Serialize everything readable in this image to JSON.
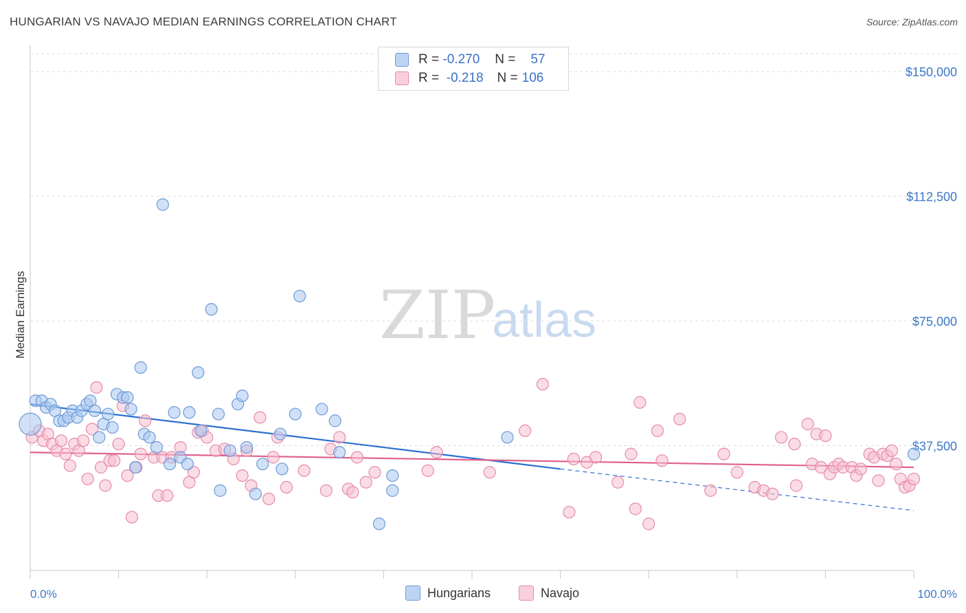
{
  "title": "HUNGARIAN VS NAVAJO MEDIAN EARNINGS CORRELATION CHART",
  "source": "Source: ZipAtlas.com",
  "watermark": {
    "zip": "ZIP",
    "atlas": "atlas"
  },
  "legend": {
    "rows": [
      {
        "r_label": "R =",
        "r_value": "-0.270",
        "n_label": "N =",
        "n_value": "57"
      },
      {
        "r_label": "R =",
        "r_value": "-0.218",
        "n_label": "N =",
        "n_value": "106"
      }
    ]
  },
  "colors": {
    "blue_fill": "#a9c8f0",
    "blue_stroke": "#6d9ad6",
    "blue_line": "#2a6fd0",
    "pink_fill": "#f6c0d0",
    "pink_stroke": "#e68aa8",
    "pink_line": "#e0608c",
    "tick_text": "#3b78c8",
    "grid": "#dddddd"
  },
  "chart_data": {
    "type": "scatter",
    "xlabel": "",
    "ylabel": "Median Earnings",
    "xlim": [
      0,
      100
    ],
    "ylim": [
      0,
      155000
    ],
    "x_tick_labels": [
      "0.0%",
      "100.0%"
    ],
    "y_ticks": [
      {
        "value": 37500,
        "label": "$37,500"
      },
      {
        "value": 75000,
        "label": "$75,000"
      },
      {
        "value": 112500,
        "label": "$112,500"
      },
      {
        "value": 150000,
        "label": "$150,000"
      }
    ],
    "grid": true,
    "legend_position": "bottom",
    "series": [
      {
        "name": "Hungarians",
        "color": "#a9c8f0",
        "points": [
          [
            0.0,
            44000
          ],
          [
            0.6,
            51000
          ],
          [
            1.3,
            51000
          ],
          [
            1.8,
            49000
          ],
          [
            2.3,
            50000
          ],
          [
            2.8,
            48000
          ],
          [
            3.3,
            45000
          ],
          [
            3.8,
            45000
          ],
          [
            4.3,
            46000
          ],
          [
            4.8,
            48000
          ],
          [
            5.3,
            46000
          ],
          [
            5.8,
            48000
          ],
          [
            6.4,
            50000
          ],
          [
            6.8,
            51000
          ],
          [
            7.3,
            48000
          ],
          [
            7.8,
            40000
          ],
          [
            8.3,
            44000
          ],
          [
            8.8,
            47000
          ],
          [
            9.3,
            43000
          ],
          [
            9.8,
            53000
          ],
          [
            10.5,
            52000
          ],
          [
            11.0,
            52000
          ],
          [
            11.4,
            48500
          ],
          [
            11.9,
            31000
          ],
          [
            12.5,
            61000
          ],
          [
            12.9,
            41000
          ],
          [
            13.5,
            40000
          ],
          [
            14.3,
            37000
          ],
          [
            15.0,
            110000
          ],
          [
            15.8,
            32000
          ],
          [
            16.3,
            47500
          ],
          [
            17.0,
            34000
          ],
          [
            17.8,
            32000
          ],
          [
            18.0,
            47500
          ],
          [
            19.0,
            59500
          ],
          [
            19.3,
            42000
          ],
          [
            20.5,
            78500
          ],
          [
            21.3,
            47000
          ],
          [
            21.5,
            24000
          ],
          [
            22.6,
            36000
          ],
          [
            23.5,
            50000
          ],
          [
            24.0,
            52500
          ],
          [
            24.5,
            37000
          ],
          [
            25.5,
            23000
          ],
          [
            26.3,
            32000
          ],
          [
            28.3,
            41000
          ],
          [
            28.5,
            30500
          ],
          [
            30.0,
            47000
          ],
          [
            30.5,
            82500
          ],
          [
            33.0,
            48500
          ],
          [
            34.5,
            45000
          ],
          [
            35.0,
            35500
          ],
          [
            39.5,
            14000
          ],
          [
            41.0,
            28500
          ],
          [
            41.0,
            24000
          ],
          [
            54.0,
            40000
          ],
          [
            100.0,
            35000
          ]
        ],
        "trend": {
          "x0": 0,
          "y0": 50000,
          "x1": 60,
          "y1": 30500,
          "dash_x1": 100,
          "dash_y1": 18000
        }
      },
      {
        "name": "Navajo",
        "color": "#f6c0d0",
        "points": [
          [
            0.2,
            40000
          ],
          [
            1.0,
            42000
          ],
          [
            1.5,
            39000
          ],
          [
            2.0,
            41000
          ],
          [
            2.5,
            38000
          ],
          [
            3.0,
            36000
          ],
          [
            3.5,
            39000
          ],
          [
            4.0,
            35000
          ],
          [
            4.5,
            31500
          ],
          [
            5.0,
            38000
          ],
          [
            5.5,
            36000
          ],
          [
            6.0,
            39000
          ],
          [
            6.5,
            27500
          ],
          [
            7.0,
            42500
          ],
          [
            7.5,
            55000
          ],
          [
            8.0,
            31000
          ],
          [
            8.5,
            25500
          ],
          [
            9.0,
            33000
          ],
          [
            9.5,
            33000
          ],
          [
            10.0,
            38000
          ],
          [
            10.5,
            49500
          ],
          [
            11.0,
            28500
          ],
          [
            11.5,
            16000
          ],
          [
            12.0,
            31000
          ],
          [
            12.5,
            35000
          ],
          [
            13.0,
            45000
          ],
          [
            14.0,
            34000
          ],
          [
            14.5,
            22500
          ],
          [
            15.0,
            34000
          ],
          [
            15.5,
            22500
          ],
          [
            16.0,
            34000
          ],
          [
            17.0,
            37000
          ],
          [
            18.0,
            26500
          ],
          [
            18.5,
            29500
          ],
          [
            19.0,
            41500
          ],
          [
            19.5,
            42000
          ],
          [
            20.0,
            40000
          ],
          [
            21.0,
            36000
          ],
          [
            22.0,
            36500
          ],
          [
            23.0,
            33500
          ],
          [
            24.0,
            28500
          ],
          [
            24.5,
            36000
          ],
          [
            25.0,
            25500
          ],
          [
            26.0,
            46000
          ],
          [
            27.0,
            21500
          ],
          [
            27.5,
            34000
          ],
          [
            28.0,
            40000
          ],
          [
            29.0,
            25000
          ],
          [
            31.0,
            30000
          ],
          [
            33.5,
            24000
          ],
          [
            34.0,
            36500
          ],
          [
            35.0,
            40000
          ],
          [
            36.0,
            24500
          ],
          [
            36.5,
            23500
          ],
          [
            37.0,
            34000
          ],
          [
            38.0,
            26500
          ],
          [
            39.0,
            29500
          ],
          [
            45.0,
            30000
          ],
          [
            46.0,
            35500
          ],
          [
            52.0,
            29500
          ],
          [
            56.0,
            42000
          ],
          [
            58.0,
            56000
          ],
          [
            61.0,
            17500
          ],
          [
            61.5,
            33500
          ],
          [
            63.0,
            32500
          ],
          [
            64.0,
            34000
          ],
          [
            66.5,
            26500
          ],
          [
            68.0,
            35000
          ],
          [
            68.5,
            18500
          ],
          [
            69.0,
            50500
          ],
          [
            70.0,
            14000
          ],
          [
            71.0,
            42000
          ],
          [
            71.5,
            33000
          ],
          [
            73.5,
            45500
          ],
          [
            77.0,
            24000
          ],
          [
            78.5,
            35000
          ],
          [
            80.0,
            29500
          ],
          [
            82.0,
            25000
          ],
          [
            83.0,
            24000
          ],
          [
            84.0,
            23000
          ],
          [
            85.0,
            40000
          ],
          [
            86.5,
            38000
          ],
          [
            86.7,
            25500
          ],
          [
            88.0,
            44000
          ],
          [
            88.5,
            32000
          ],
          [
            89.0,
            41000
          ],
          [
            89.5,
            31000
          ],
          [
            90.0,
            40500
          ],
          [
            90.5,
            29000
          ],
          [
            91.0,
            31000
          ],
          [
            91.5,
            32000
          ],
          [
            92.0,
            31000
          ],
          [
            93.0,
            31000
          ],
          [
            93.5,
            28500
          ],
          [
            94.0,
            30500
          ],
          [
            95.0,
            35000
          ],
          [
            95.5,
            34000
          ],
          [
            96.0,
            27000
          ],
          [
            96.5,
            35000
          ],
          [
            97.0,
            34500
          ],
          [
            97.5,
            36000
          ],
          [
            98.0,
            32000
          ],
          [
            98.5,
            27500
          ],
          [
            99.0,
            25000
          ],
          [
            99.5,
            25500
          ],
          [
            100.0,
            27500
          ]
        ],
        "trend": {
          "x0": 0,
          "y0": 35500,
          "x1": 100,
          "y1": 31000
        }
      }
    ]
  },
  "bottom_legend": {
    "series": [
      "Hungarians",
      "Navajo"
    ]
  }
}
